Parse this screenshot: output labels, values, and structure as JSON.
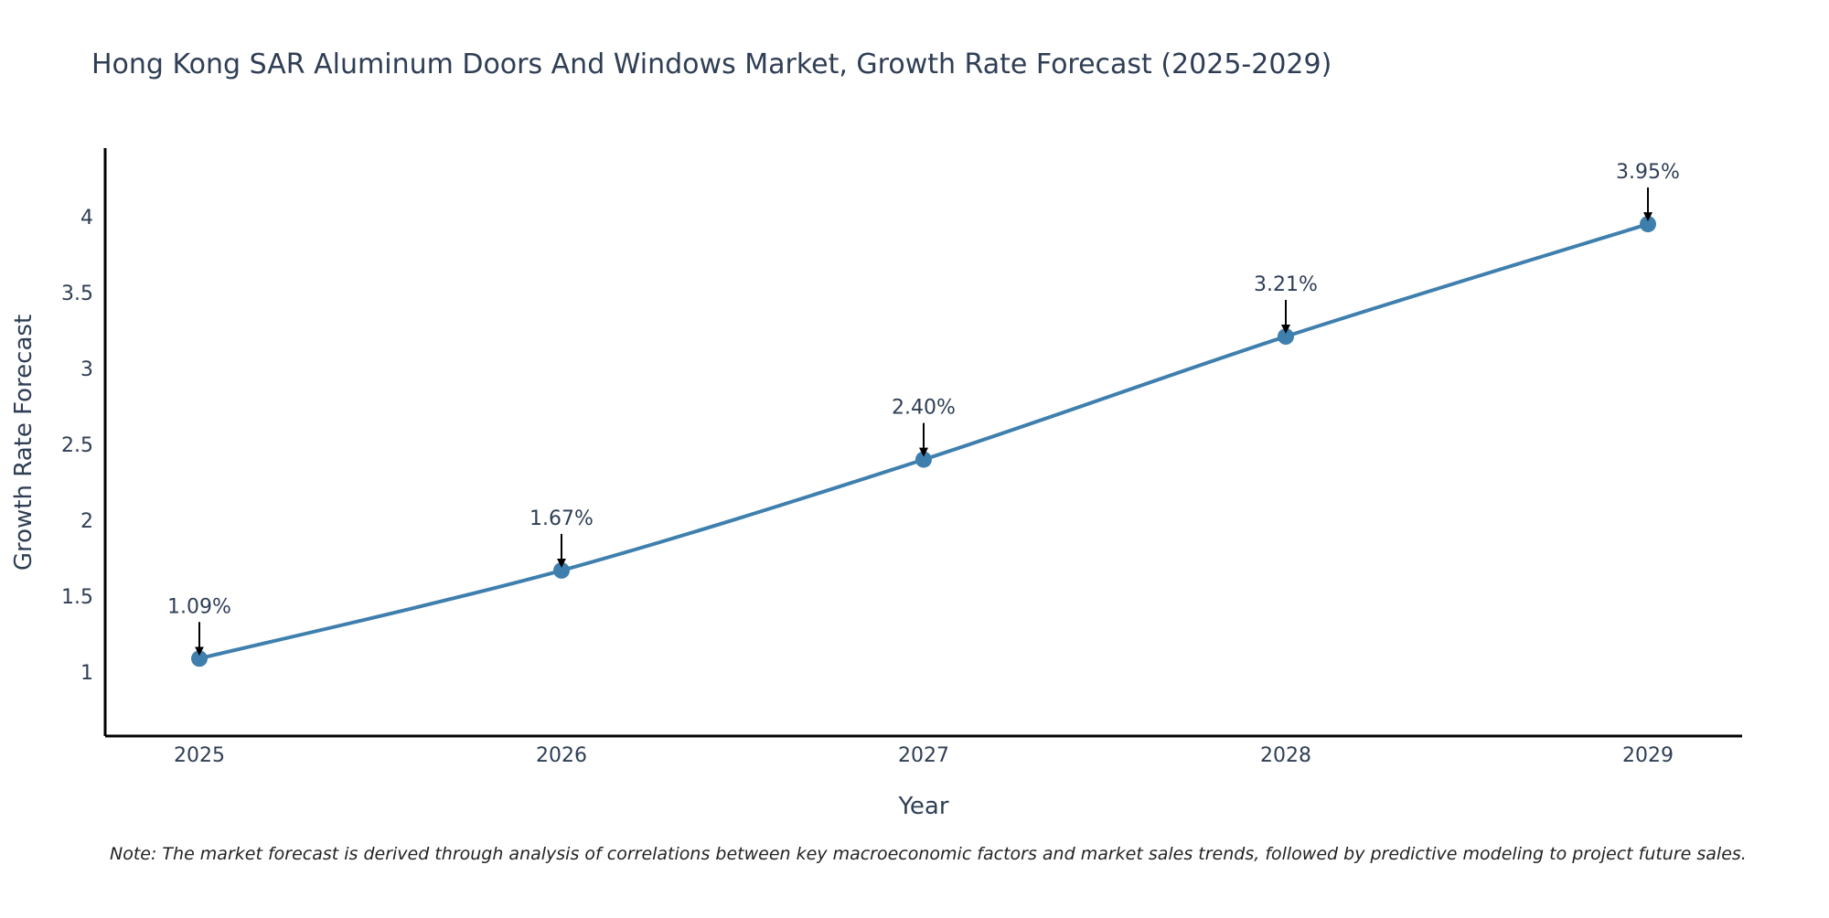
{
  "chart_data": {
    "type": "line",
    "title": "Hong Kong SAR Aluminum Doors And Windows Market, Growth Rate Forecast (2025-2029)",
    "xlabel": "Year",
    "ylabel": "Growth Rate Forecast",
    "categories": [
      "2025",
      "2026",
      "2027",
      "2028",
      "2029"
    ],
    "series": [
      {
        "name": "Growth Rate Forecast",
        "values": [
          1.09,
          1.67,
          2.4,
          3.21,
          3.95
        ],
        "data_labels": [
          "1.09%",
          "1.67%",
          "2.40%",
          "3.21%",
          "3.95%"
        ]
      }
    ],
    "y_ticks": [
      1,
      1.5,
      2,
      2.5,
      3,
      3.5,
      4
    ],
    "y_tick_labels": [
      "1",
      "1.5",
      "2",
      "2.5",
      "3",
      "3.5",
      "4"
    ],
    "ylim": [
      0.58,
      4.45
    ],
    "grid": false,
    "legend": "none",
    "line_color": "#3f7fae",
    "marker_color": "#3f7fae",
    "annotation_arrow_color": "#000000",
    "note": "Note: The market forecast is derived through analysis of correlations between key macroeconomic factors and market sales trends, followed by predictive modeling to project future sales."
  }
}
